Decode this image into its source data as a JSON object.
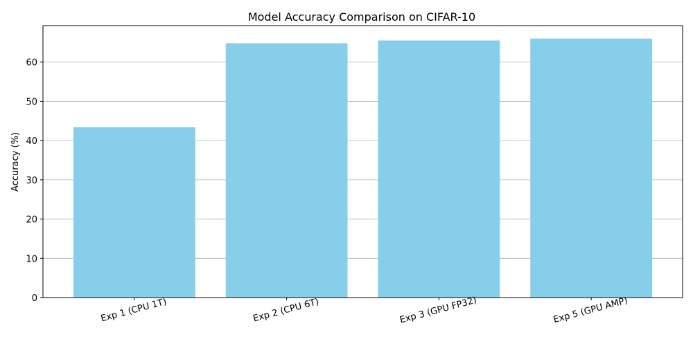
{
  "chart_data": {
    "type": "bar",
    "title": "Model Accuracy Comparison on CIFAR-10",
    "xlabel": "",
    "ylabel": "Accuracy (%)",
    "categories": [
      "Exp 1 (CPU 1T)",
      "Exp 2 (CPU 6T)",
      "Exp 3 (GPU FP32)",
      "Exp 5 (GPU AMP)"
    ],
    "values": [
      43.4,
      64.8,
      65.5,
      66.0
    ],
    "ylim": [
      0,
      69.3
    ],
    "yticks": [
      0,
      10,
      20,
      30,
      40,
      50,
      60
    ],
    "grid": "y",
    "legend": "none",
    "x_tick_rotation_deg": 15,
    "colors": {
      "bar": "#87ceeb",
      "grid": "#b0b0b0",
      "axis": "#000000"
    }
  }
}
